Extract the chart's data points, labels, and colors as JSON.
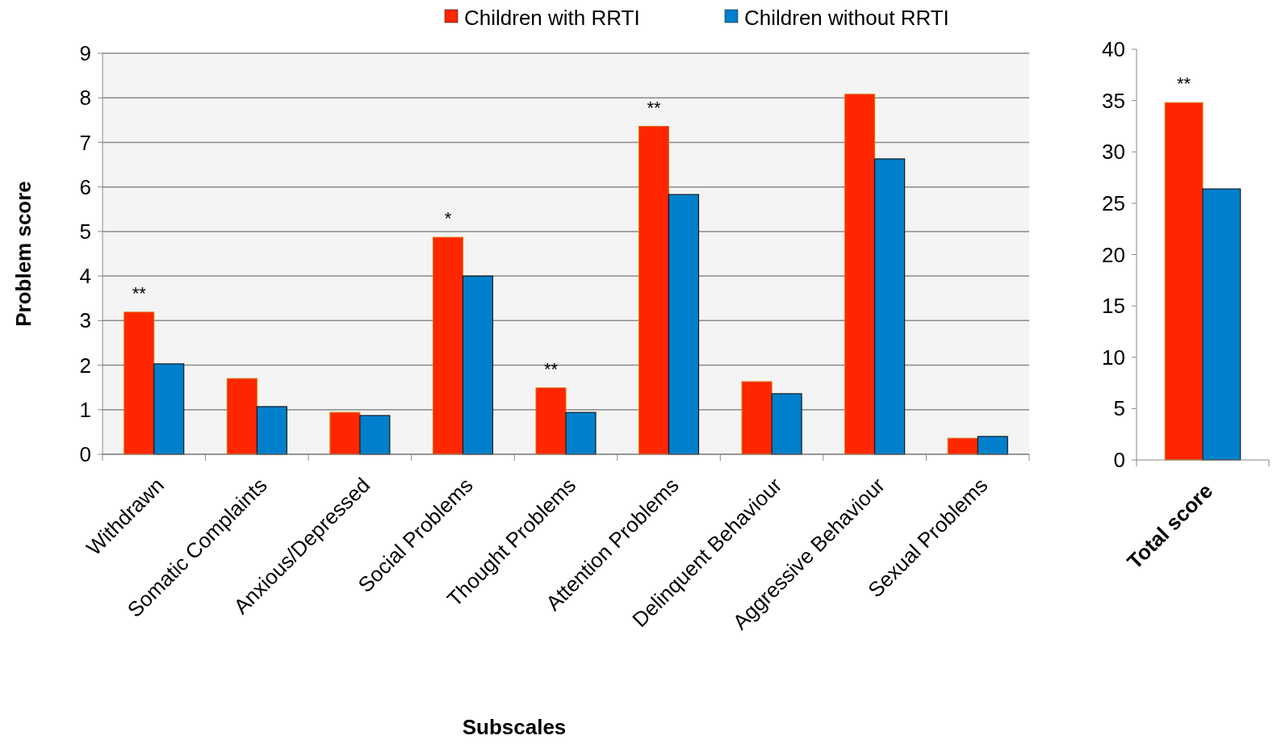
{
  "chart_data": [
    {
      "type": "bar",
      "xlabel": "Subscales",
      "ylabel": "Problem score",
      "categories": [
        "Withdrawn",
        "Somatic Complaints",
        "Anxious/Depressed",
        "Social Problems",
        "Thought Problems",
        "Attention Problems",
        "Delinquent Behaviour",
        "Aggressive Behaviour",
        "Sexual Problems"
      ],
      "series": [
        {
          "name": "Children with RRTI",
          "color": "#ff2600",
          "values": [
            3.19,
            1.7,
            0.94,
            4.87,
            1.49,
            7.36,
            1.63,
            8.08,
            0.36
          ]
        },
        {
          "name": "Children without RRTI",
          "color": "#0080cc",
          "values": [
            2.03,
            1.07,
            0.87,
            4.0,
            0.94,
            5.83,
            1.36,
            6.63,
            0.4
          ]
        }
      ],
      "ylim": [
        0,
        9
      ],
      "yticks": [
        0,
        1,
        2,
        3,
        4,
        5,
        6,
        7,
        8,
        9
      ],
      "grid": "y",
      "legend": "top",
      "annotations": [
        "**",
        "*",
        "**",
        "**"
      ]
    },
    {
      "type": "bar",
      "categories": [
        "Total score"
      ],
      "series": [
        {
          "color": "#ff2600",
          "values": [
            34.8
          ]
        },
        {
          "color": "#0080cc",
          "values": [
            26.4
          ]
        }
      ],
      "ylim": [
        0,
        40
      ],
      "yticks": [
        0,
        5,
        10,
        15,
        20,
        25,
        30,
        35,
        40
      ],
      "annotations": [
        "**"
      ]
    }
  ]
}
